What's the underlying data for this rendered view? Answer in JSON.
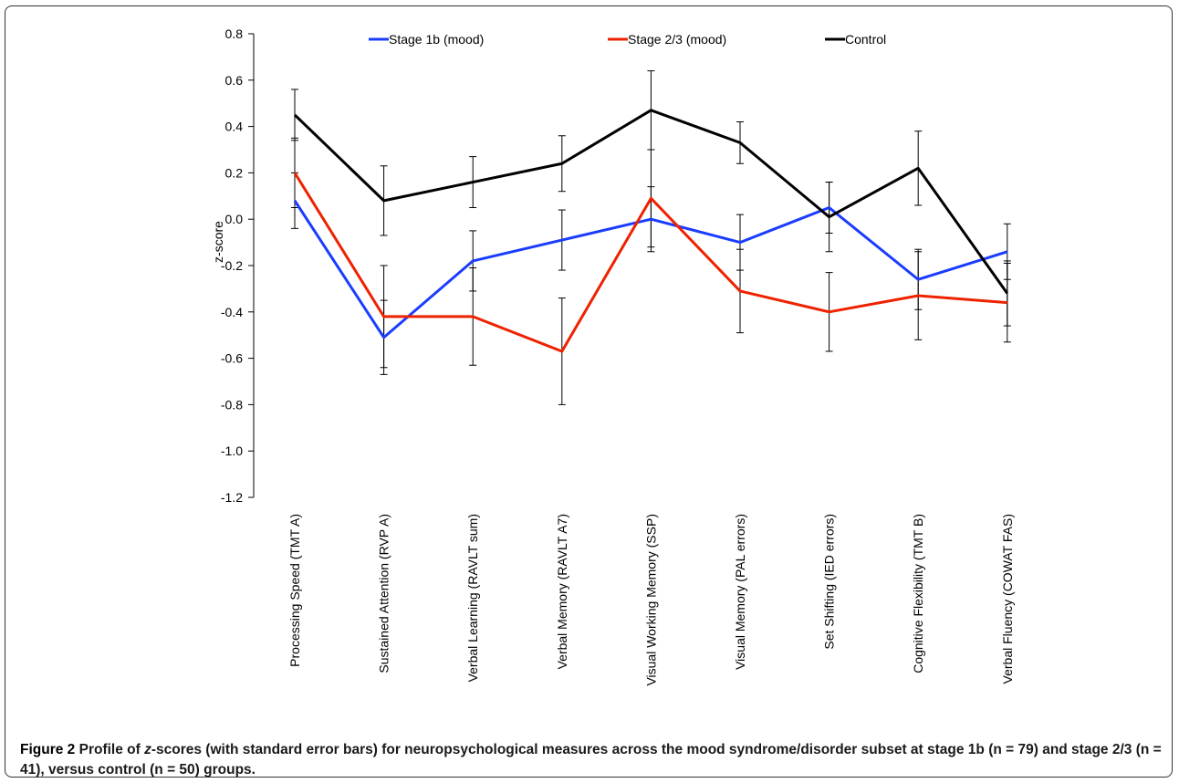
{
  "chart_data": {
    "type": "line",
    "title": "",
    "xlabel": "",
    "ylabel": "z-score",
    "ylim": [
      -1.2,
      0.8
    ],
    "yticks": [
      "0.8",
      "0.6",
      "0.4",
      "0.2",
      "0.0",
      "-0.2",
      "-0.4",
      "-0.6",
      "-0.8",
      "-1.0",
      "-1.2"
    ],
    "ytick_values": [
      0.8,
      0.6,
      0.4,
      0.2,
      0.0,
      -0.2,
      -0.4,
      -0.6,
      -0.8,
      -1.0,
      -1.2
    ],
    "categories": [
      "Processing Speed (TMT A)",
      "Sustained Attention (RVP A)",
      "Verbal Learning (RAVLT sum)",
      "Verbal Memory (RAVLT A7)",
      "Visual Working Memory (SSP)",
      "Visual Memory (PAL errors)",
      "Set Shifting (IED errors)",
      "Cognitive Flexibility (TMT B)",
      "Verbal Fluency (COWAT FAS)"
    ],
    "grid": false,
    "legend_position": "top",
    "series": [
      {
        "name": "Stage 1b (mood)",
        "color": "#1a3cff",
        "values": [
          0.08,
          -0.51,
          -0.18,
          -0.09,
          0.0,
          -0.1,
          0.05,
          -0.26,
          -0.14
        ],
        "errors": [
          0.12,
          0.16,
          0.13,
          0.13,
          0.14,
          0.12,
          0.11,
          0.13,
          0.12
        ]
      },
      {
        "name": "Stage 2/3 (mood)",
        "color": "#ee2200",
        "values": [
          0.2,
          -0.42,
          -0.42,
          -0.57,
          0.09,
          -0.31,
          -0.4,
          -0.33,
          -0.36
        ],
        "errors": [
          0.15,
          0.22,
          0.21,
          0.23,
          0.21,
          0.18,
          0.17,
          0.19,
          0.17
        ]
      },
      {
        "name": "Control",
        "color": "#000000",
        "values": [
          0.45,
          0.08,
          0.16,
          0.24,
          0.47,
          0.33,
          0.01,
          0.22,
          -0.32
        ],
        "errors": [
          0.11,
          0.15,
          0.11,
          0.12,
          0.17,
          0.09,
          0.15,
          0.16,
          0.14
        ]
      }
    ]
  },
  "caption": {
    "label": "Figure 2",
    "text_before_italic": " Profile of ",
    "italic": "z",
    "text_after_italic": "-scores (with standard error bars) for neuropsychological measures across the mood syndrome/disorder subset at stage 1b (n = 79) and stage 2/3 (n = 41), versus control (n = 50) groups."
  }
}
